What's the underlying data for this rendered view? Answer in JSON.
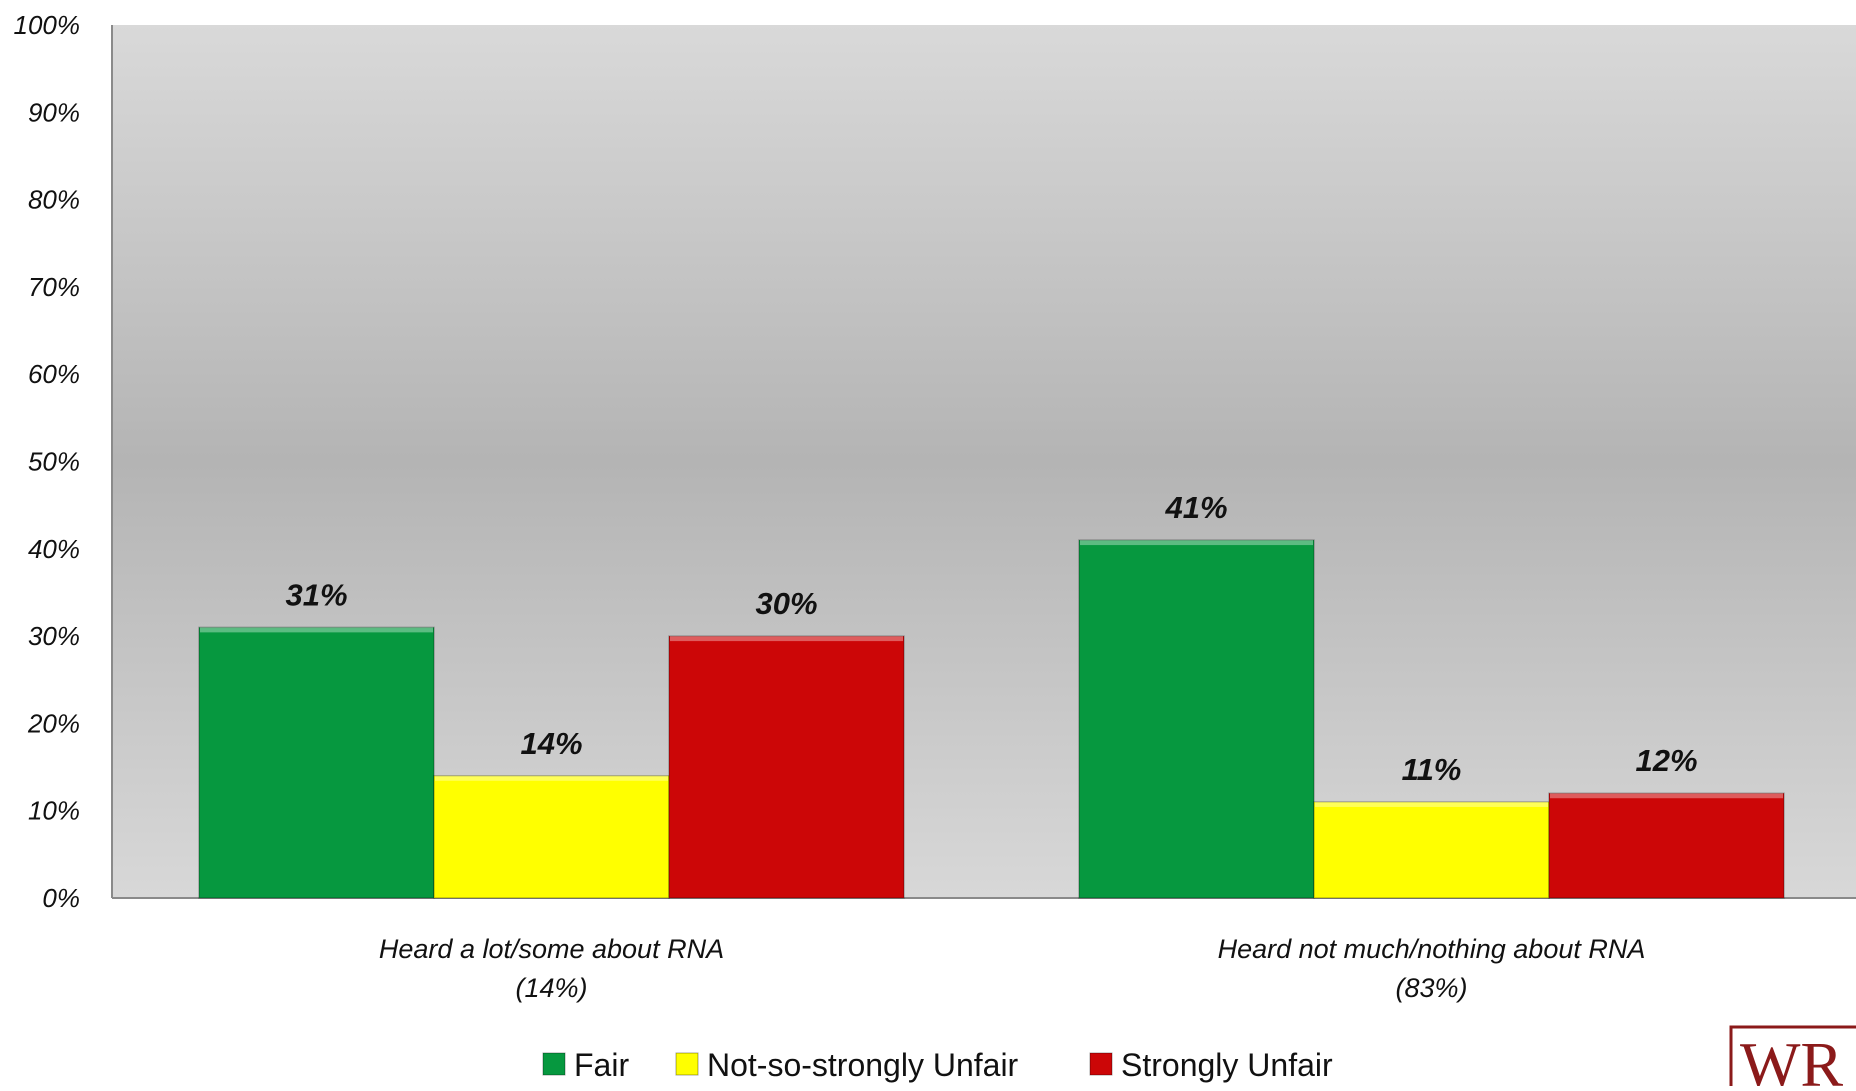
{
  "chart_data": {
    "type": "bar",
    "title": "",
    "xlabel": "",
    "ylabel": "",
    "ylim": [
      0,
      100
    ],
    "yticks": [
      "0%",
      "10%",
      "20%",
      "30%",
      "40%",
      "50%",
      "60%",
      "70%",
      "80%",
      "90%",
      "100%"
    ],
    "categories": [
      [
        "Heard a lot/some about RNA",
        "(14%)"
      ],
      [
        "Heard not much/nothing about RNA",
        "(83%)"
      ]
    ],
    "series": [
      {
        "name": "Fair",
        "color": "#06983f",
        "values": [
          31,
          41
        ],
        "labels": [
          "31%",
          "41%"
        ]
      },
      {
        "name": "Not-so-strongly Unfair",
        "color": "#ffff00",
        "values": [
          14,
          11
        ],
        "labels": [
          "14%",
          "11%"
        ]
      },
      {
        "name": "Strongly Unfair",
        "color": "#cc0607",
        "values": [
          30,
          12
        ],
        "labels": [
          "30%",
          "12%"
        ]
      }
    ],
    "grid": false,
    "legend": "bottom-center",
    "background": "gradient-gray"
  },
  "logo": {
    "text": "WR"
  }
}
